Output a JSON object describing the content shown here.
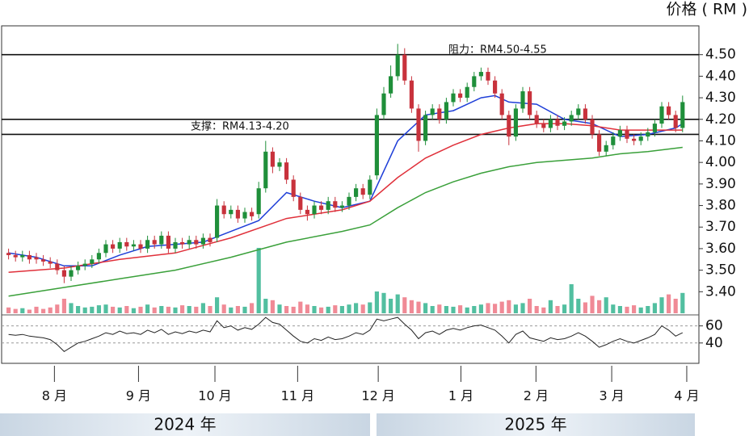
{
  "chart_data": {
    "type": "candlestick",
    "title": "价格 ( RM )",
    "x": [
      0,
      1,
      2,
      3,
      4,
      5,
      6,
      7,
      8,
      9,
      10,
      11,
      12,
      13,
      14,
      15,
      16,
      17,
      18,
      19,
      20,
      21,
      22,
      23,
      24,
      25,
      26,
      27,
      28,
      29,
      30,
      31,
      32,
      33,
      34,
      35,
      36,
      37,
      38,
      39,
      40,
      41,
      42,
      43,
      44,
      45,
      46,
      47,
      48,
      49,
      50,
      51,
      52,
      53,
      54,
      55,
      56,
      57,
      58,
      59,
      60,
      61,
      62,
      63,
      64,
      65,
      66,
      67,
      68,
      69,
      70,
      71,
      72,
      73,
      74,
      75,
      76,
      77,
      78,
      79,
      80,
      81,
      82,
      83,
      84,
      85,
      86,
      87,
      88,
      89,
      90,
      91,
      92,
      93,
      94,
      95,
      96,
      97
    ],
    "open": [
      3.58,
      3.57,
      3.56,
      3.57,
      3.56,
      3.55,
      3.54,
      3.53,
      3.5,
      3.47,
      3.5,
      3.52,
      3.53,
      3.55,
      3.58,
      3.62,
      3.6,
      3.63,
      3.61,
      3.62,
      3.6,
      3.64,
      3.62,
      3.66,
      3.6,
      3.63,
      3.62,
      3.64,
      3.62,
      3.65,
      3.65,
      3.8,
      3.76,
      3.78,
      3.74,
      3.77,
      3.76,
      3.88,
      4.05,
      3.98,
      4.0,
      3.92,
      3.84,
      3.78,
      3.76,
      3.8,
      3.78,
      3.82,
      3.79,
      3.8,
      3.84,
      3.88,
      3.85,
      3.94,
      4.22,
      4.32,
      4.4,
      4.5,
      4.38,
      4.25,
      4.1,
      4.22,
      4.25,
      4.2,
      4.28,
      4.32,
      4.3,
      4.35,
      4.4,
      4.42,
      4.38,
      4.32,
      4.22,
      4.12,
      4.25,
      4.33,
      4.22,
      4.18,
      4.16,
      4.2,
      4.17,
      4.19,
      4.22,
      4.25,
      4.2,
      4.13,
      4.05,
      4.08,
      4.12,
      4.15,
      4.11,
      4.1,
      4.12,
      4.14,
      4.18,
      4.26,
      4.22,
      4.16
    ],
    "high": [
      3.6,
      3.59,
      3.59,
      3.59,
      3.58,
      3.57,
      3.56,
      3.55,
      3.52,
      3.52,
      3.54,
      3.55,
      3.57,
      3.6,
      3.64,
      3.64,
      3.65,
      3.65,
      3.64,
      3.64,
      3.66,
      3.66,
      3.68,
      3.68,
      3.65,
      3.65,
      3.66,
      3.66,
      3.67,
      3.67,
      3.83,
      3.82,
      3.8,
      3.8,
      3.79,
      3.79,
      3.91,
      4.1,
      4.07,
      4.02,
      4.02,
      3.94,
      3.86,
      3.8,
      3.82,
      3.82,
      3.84,
      3.84,
      3.82,
      3.86,
      3.9,
      3.9,
      3.94,
      4.25,
      4.35,
      4.45,
      4.55,
      4.53,
      4.4,
      4.27,
      4.24,
      4.27,
      4.27,
      4.3,
      4.34,
      4.34,
      4.37,
      4.42,
      4.44,
      4.44,
      4.4,
      4.34,
      4.24,
      4.27,
      4.35,
      4.35,
      4.24,
      4.2,
      4.22,
      4.22,
      4.21,
      4.24,
      4.27,
      4.27,
      4.22,
      4.15,
      4.1,
      4.14,
      4.17,
      4.17,
      4.13,
      4.14,
      4.16,
      4.2,
      4.28,
      4.28,
      4.24,
      4.31
    ],
    "low": [
      3.55,
      3.54,
      3.54,
      3.53,
      3.53,
      3.52,
      3.51,
      3.48,
      3.44,
      3.45,
      3.48,
      3.5,
      3.51,
      3.53,
      3.56,
      3.58,
      3.58,
      3.59,
      3.59,
      3.58,
      3.58,
      3.6,
      3.6,
      3.58,
      3.58,
      3.6,
      3.6,
      3.6,
      3.6,
      3.61,
      3.63,
      3.74,
      3.74,
      3.72,
      3.72,
      3.73,
      3.74,
      3.86,
      3.95,
      3.96,
      3.9,
      3.82,
      3.76,
      3.73,
      3.74,
      3.76,
      3.76,
      3.77,
      3.77,
      3.78,
      3.82,
      3.83,
      3.83,
      3.92,
      4.2,
      4.3,
      4.38,
      4.36,
      4.23,
      4.05,
      4.08,
      4.2,
      4.18,
      4.18,
      4.26,
      4.28,
      4.28,
      4.33,
      4.38,
      4.36,
      4.3,
      4.2,
      4.08,
      4.1,
      4.23,
      4.2,
      4.16,
      4.14,
      4.14,
      4.15,
      4.15,
      4.17,
      4.2,
      4.18,
      4.11,
      4.03,
      4.03,
      4.06,
      4.1,
      4.09,
      4.08,
      4.08,
      4.1,
      4.12,
      4.16,
      4.2,
      4.14,
      4.14
    ],
    "close": [
      3.57,
      3.56,
      3.57,
      3.55,
      3.55,
      3.54,
      3.53,
      3.5,
      3.47,
      3.5,
      3.52,
      3.53,
      3.55,
      3.58,
      3.62,
      3.6,
      3.63,
      3.61,
      3.62,
      3.6,
      3.64,
      3.62,
      3.66,
      3.6,
      3.63,
      3.62,
      3.64,
      3.62,
      3.65,
      3.63,
      3.8,
      3.76,
      3.78,
      3.74,
      3.77,
      3.75,
      3.88,
      4.05,
      3.98,
      4.0,
      3.92,
      3.84,
      3.78,
      3.76,
      3.8,
      3.78,
      3.82,
      3.79,
      3.8,
      3.84,
      3.88,
      3.85,
      3.92,
      4.22,
      4.32,
      4.4,
      4.5,
      4.38,
      4.25,
      4.1,
      4.22,
      4.25,
      4.2,
      4.28,
      4.32,
      4.3,
      4.35,
      4.4,
      4.42,
      4.38,
      4.32,
      4.22,
      4.12,
      4.25,
      4.33,
      4.22,
      4.18,
      4.16,
      4.2,
      4.17,
      4.19,
      4.22,
      4.25,
      4.2,
      4.13,
      4.05,
      4.08,
      4.12,
      4.15,
      4.11,
      4.1,
      4.12,
      4.14,
      4.18,
      4.26,
      4.22,
      4.16,
      4.28
    ],
    "up_color": "#1f8f3a",
    "down_color": "#c8323c",
    "series": [
      {
        "color": "#1f3fd8",
        "x": [
          0,
          4,
          8,
          12,
          16,
          20,
          24,
          28,
          32,
          36,
          40,
          44,
          48,
          52,
          56,
          60,
          64,
          68,
          70,
          72,
          76,
          80,
          84,
          88,
          92,
          96,
          97
        ],
        "values": [
          3.58,
          3.56,
          3.52,
          3.52,
          3.57,
          3.61,
          3.62,
          3.63,
          3.68,
          3.73,
          3.86,
          3.82,
          3.79,
          3.82,
          4.1,
          4.22,
          4.24,
          4.3,
          4.31,
          4.28,
          4.27,
          4.2,
          4.18,
          4.12,
          4.13,
          4.16,
          4.18
        ]
      },
      {
        "color": "#e0303a",
        "x": [
          0,
          8,
          16,
          24,
          32,
          40,
          48,
          52,
          56,
          60,
          64,
          68,
          72,
          76,
          80,
          84,
          88,
          92,
          97
        ],
        "values": [
          3.49,
          3.51,
          3.55,
          3.58,
          3.65,
          3.74,
          3.78,
          3.82,
          3.93,
          4.02,
          4.08,
          4.13,
          4.16,
          4.18,
          4.18,
          4.17,
          4.15,
          4.15,
          4.15
        ]
      },
      {
        "color": "#3aa03a",
        "x": [
          0,
          8,
          16,
          24,
          32,
          40,
          48,
          52,
          56,
          60,
          64,
          68,
          72,
          76,
          80,
          84,
          88,
          92,
          97
        ],
        "values": [
          3.38,
          3.42,
          3.46,
          3.5,
          3.56,
          3.63,
          3.68,
          3.71,
          3.79,
          3.86,
          3.91,
          3.95,
          3.98,
          4.0,
          4.01,
          4.02,
          4.04,
          4.05,
          4.07
        ]
      }
    ],
    "levels": [
      4.5,
      4.2,
      4.13
    ],
    "level_color": "#111111",
    "annotations": [
      "阻力：RM4.50-4.55",
      "支撑：RM4.13-4.20"
    ],
    "xlim": [
      -1,
      99
    ],
    "xticks": [
      {
        "value": 6.6,
        "label": "8 月"
      },
      {
        "value": 18.7,
        "label": "9 月"
      },
      {
        "value": 29.7,
        "label": "10 月"
      },
      {
        "value": 41.6,
        "label": "11 月"
      },
      {
        "value": 53.2,
        "label": "12 月"
      },
      {
        "value": 65.1,
        "label": "1 月"
      },
      {
        "value": 75.9,
        "label": "2 月"
      },
      {
        "value": 86.8,
        "label": "3 月"
      },
      {
        "value": 97.6,
        "label": "4 月"
      }
    ],
    "ylim": [
      3.36,
      4.63
    ],
    "yticks": [
      {
        "value": 3.4,
        "label": "3.40"
      },
      {
        "value": 3.5,
        "label": "3.50"
      },
      {
        "value": 3.6,
        "label": "3.60"
      },
      {
        "value": 3.7,
        "label": "3.70"
      },
      {
        "value": 3.8,
        "label": "3.80"
      },
      {
        "value": 3.9,
        "label": "3.90"
      },
      {
        "value": 4.0,
        "label": "4.00"
      },
      {
        "value": 4.1,
        "label": "4.10"
      },
      {
        "value": 4.2,
        "label": "4.20"
      },
      {
        "value": 4.3,
        "label": "4.30"
      },
      {
        "value": 4.4,
        "label": "4.40"
      },
      {
        "value": 4.5,
        "label": "4.50"
      }
    ],
    "volume": {
      "up_color": "#52bfa0",
      "down_color": "#f08a96",
      "ylim": [
        0,
        100
      ],
      "values": [
        8,
        6,
        7,
        5,
        9,
        6,
        8,
        12,
        20,
        14,
        10,
        8,
        9,
        11,
        12,
        9,
        8,
        10,
        7,
        9,
        12,
        8,
        10,
        9,
        8,
        11,
        10,
        9,
        14,
        10,
        22,
        12,
        8,
        10,
        9,
        14,
        90,
        20,
        18,
        12,
        10,
        9,
        16,
        12,
        10,
        8,
        9,
        11,
        10,
        12,
        14,
        12,
        15,
        30,
        28,
        20,
        26,
        22,
        18,
        16,
        14,
        10,
        12,
        10,
        9,
        11,
        8,
        10,
        12,
        14,
        13,
        16,
        18,
        12,
        14,
        20,
        10,
        8,
        18,
        10,
        12,
        40,
        20,
        15,
        24,
        18,
        22,
        12,
        10,
        9,
        11,
        8,
        10,
        14,
        22,
        26,
        20,
        28
      ]
    },
    "rsi": {
      "color": "#222222",
      "ylim": [
        19,
        71
      ],
      "yticks": [
        60,
        40
      ],
      "values": [
        50,
        49,
        50,
        48,
        47,
        46,
        44,
        38,
        30,
        35,
        40,
        42,
        45,
        48,
        52,
        50,
        54,
        51,
        52,
        50,
        55,
        52,
        56,
        50,
        53,
        51,
        54,
        52,
        55,
        53,
        66,
        58,
        60,
        55,
        58,
        56,
        62,
        70,
        64,
        62,
        55,
        48,
        42,
        40,
        45,
        43,
        47,
        44,
        45,
        48,
        52,
        50,
        55,
        68,
        66,
        68,
        70,
        62,
        55,
        45,
        52,
        54,
        50,
        55,
        57,
        55,
        58,
        60,
        61,
        58,
        55,
        48,
        40,
        50,
        54,
        46,
        44,
        42,
        46,
        44,
        45,
        48,
        52,
        48,
        42,
        35,
        38,
        42,
        45,
        42,
        40,
        43,
        46,
        50,
        60,
        55,
        48,
        52
      ]
    },
    "periods": [
      "2024 年",
      "2025 年"
    ]
  }
}
